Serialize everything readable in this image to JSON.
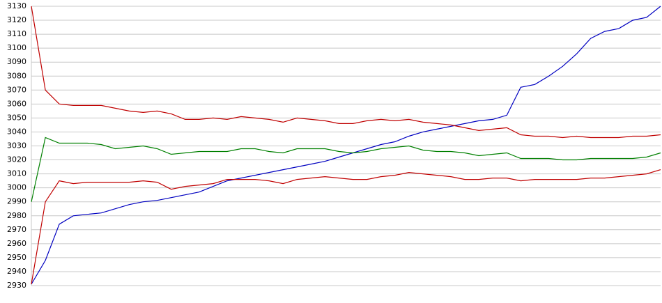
{
  "chart_data": {
    "type": "line",
    "categories": [
      null,
      null,
      null,
      null,
      null,
      null,
      null,
      null,
      null,
      null,
      null,
      null,
      null,
      null,
      null,
      null,
      null,
      null,
      null,
      null,
      null,
      null,
      null,
      null,
      null,
      null,
      null,
      null,
      null,
      null,
      null,
      null,
      null,
      null,
      null,
      null,
      null,
      null,
      null,
      null,
      null,
      null,
      null,
      null,
      null,
      null
    ],
    "series": [
      {
        "color": "#0000c0",
        "values": [
          2931,
          2948,
          2974,
          2980,
          2981,
          2982,
          2985,
          2988,
          2990,
          2991,
          2993,
          2995,
          2997,
          3001,
          3005,
          3007,
          3009,
          3011,
          3013,
          3015,
          3017,
          3019,
          3022,
          3025,
          3028,
          3031,
          3033,
          3037,
          3040,
          3042,
          3044,
          3046,
          3048,
          3049,
          3052,
          3072,
          3074,
          3080,
          3087,
          3096,
          3107,
          3112,
          3114,
          3120,
          3122,
          3130
        ]
      },
      {
        "color": "#c00000",
        "values": [
          3130,
          3070,
          3060,
          3059,
          3059,
          3059,
          3057,
          3055,
          3054,
          3055,
          3053,
          3049,
          3049,
          3050,
          3049,
          3051,
          3050,
          3049,
          3047,
          3050,
          3049,
          3048,
          3046,
          3046,
          3048,
          3049,
          3048,
          3049,
          3047,
          3046,
          3045,
          3043,
          3041,
          3042,
          3043,
          3038,
          3037,
          3037,
          3036,
          3037,
          3036,
          3036,
          3036,
          3037,
          3037,
          3038
        ]
      },
      {
        "color": "#008000",
        "values": [
          2990,
          3036,
          3032,
          3032,
          3032,
          3031,
          3028,
          3029,
          3030,
          3028,
          3024,
          3025,
          3026,
          3026,
          3026,
          3028,
          3028,
          3026,
          3025,
          3028,
          3028,
          3028,
          3026,
          3025,
          3026,
          3028,
          3029,
          3030,
          3027,
          3026,
          3026,
          3025,
          3023,
          3024,
          3025,
          3021,
          3021,
          3021,
          3020,
          3020,
          3021,
          3021,
          3021,
          3021,
          3022,
          3025
        ]
      },
      {
        "color": "#c00000",
        "values": [
          2931,
          2990,
          3005,
          3003,
          3004,
          3004,
          3004,
          3004,
          3005,
          3004,
          2999,
          3001,
          3002,
          3003,
          3006,
          3006,
          3006,
          3005,
          3003,
          3006,
          3007,
          3008,
          3007,
          3006,
          3006,
          3008,
          3009,
          3011,
          3010,
          3009,
          3008,
          3006,
          3006,
          3007,
          3007,
          3005,
          3006,
          3006,
          3006,
          3006,
          3007,
          3007,
          3008,
          3009,
          3010,
          3013
        ]
      }
    ],
    "ylim": [
      2930,
      3130
    ],
    "yticks": [
      2930,
      2940,
      2950,
      2960,
      2970,
      2980,
      2990,
      3000,
      3010,
      3020,
      3030,
      3040,
      3050,
      3060,
      3070,
      3080,
      3090,
      3100,
      3110,
      3120,
      3130
    ],
    "grid": true
  }
}
